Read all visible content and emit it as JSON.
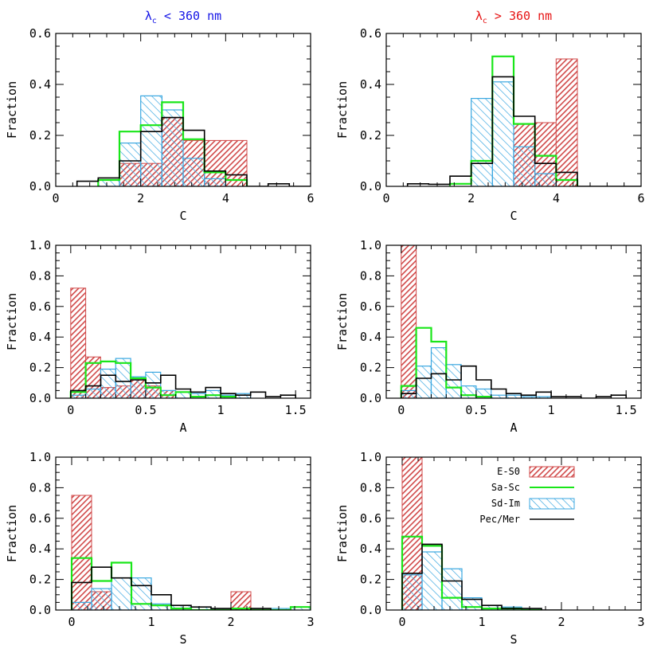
{
  "columns": [
    {
      "title_symbol": "λ",
      "title_subscript": "c",
      "title_text": " < 360 nm",
      "color": "#1414e6"
    },
    {
      "title_symbol": "λ",
      "title_subscript": "c",
      "title_text": " > 360 nm",
      "color": "#e61414"
    }
  ],
  "series": [
    {
      "key": "es0",
      "name": "E-S0",
      "style": "hatch-red",
      "fill": "#d04848",
      "stroke": "#d04848"
    },
    {
      "key": "sasc",
      "name": "Sa-Sc",
      "style": "line",
      "stroke": "#19e619"
    },
    {
      "key": "sdim",
      "name": "Sd-Im",
      "style": "hatch-blue",
      "fill": "#3aa7e0",
      "stroke": "#3aa7e0"
    },
    {
      "key": "pec",
      "name": "Pec/Mer",
      "style": "line",
      "stroke": "#000000"
    }
  ],
  "chart_data": [
    {
      "type": "histogram",
      "row": 0,
      "col": 0,
      "xlabel": "C",
      "ylabel": "Fraction",
      "xlim": [
        0,
        6
      ],
      "ylim": [
        0,
        0.6
      ],
      "xticks": [
        0,
        2,
        4,
        6
      ],
      "yticks": [
        0.0,
        0.2,
        0.4,
        0.6
      ],
      "xtick_labels": [
        "0",
        "2",
        "4",
        "6"
      ],
      "ytick_labels": [
        "0.0",
        "0.2",
        "0.4",
        "0.6"
      ],
      "series": {
        "es0": {
          "edges": [
            1.5,
            2.5,
            3.0,
            3.5,
            4.5
          ],
          "values": [
            0.09,
            0.27,
            0.18,
            0.18
          ]
        },
        "sdim": {
          "edges": [
            1.0,
            1.5,
            2.0,
            2.5,
            3.0,
            3.5,
            4.0
          ],
          "values": [
            0.025,
            0.17,
            0.355,
            0.3,
            0.11,
            0.03
          ]
        },
        "sasc": {
          "edges": [
            1.0,
            1.5,
            2.0,
            2.5,
            3.0,
            3.5,
            4.0,
            4.5
          ],
          "values": [
            0.025,
            0.215,
            0.24,
            0.33,
            0.185,
            0.055,
            0.025
          ]
        },
        "pec": {
          "edges": [
            0.5,
            1.0,
            1.5,
            2.0,
            2.5,
            3.0,
            3.5,
            4.0,
            4.5,
            5.0,
            5.5,
            6.0
          ],
          "values": [
            0.02,
            0.033,
            0.1,
            0.215,
            0.27,
            0.22,
            0.06,
            0.045,
            0.0,
            0.01,
            0.0
          ]
        }
      }
    },
    {
      "type": "histogram",
      "row": 0,
      "col": 1,
      "xlabel": "C",
      "ylabel": "Fraction",
      "xlim": [
        0,
        6
      ],
      "ylim": [
        0,
        0.6
      ],
      "xticks": [
        0,
        2,
        4,
        6
      ],
      "yticks": [
        0.0,
        0.2,
        0.4,
        0.6
      ],
      "xtick_labels": [
        "0",
        "2",
        "4",
        "6"
      ],
      "ytick_labels": [
        "0.0",
        "0.2",
        "0.4",
        "0.6"
      ],
      "series": {
        "es0": {
          "edges": [
            3.0,
            3.5,
            4.0,
            4.5
          ],
          "values": [
            0.245,
            0.25,
            0.5
          ]
        },
        "sdim": {
          "edges": [
            2.0,
            2.5,
            3.0,
            3.5,
            4.0
          ],
          "values": [
            0.345,
            0.41,
            0.155,
            0.05
          ]
        },
        "sasc": {
          "edges": [
            1.5,
            2.0,
            2.5,
            3.0,
            3.5,
            4.0,
            4.5
          ],
          "values": [
            0.01,
            0.1,
            0.51,
            0.245,
            0.12,
            0.025
          ]
        },
        "pec": {
          "edges": [
            0.5,
            1.0,
            1.5,
            2.0,
            2.5,
            3.0,
            3.5,
            4.0,
            4.5,
            5.0,
            6.0
          ],
          "values": [
            0.01,
            0.008,
            0.04,
            0.09,
            0.43,
            0.275,
            0.09,
            0.055,
            0.0,
            0.0
          ]
        }
      }
    },
    {
      "type": "histogram",
      "row": 1,
      "col": 0,
      "xlabel": "A",
      "ylabel": "Fraction",
      "xlim": [
        -0.1,
        1.6
      ],
      "ylim": [
        0,
        1.0
      ],
      "xticks": [
        0,
        0.5,
        1,
        1.5
      ],
      "yticks": [
        0.0,
        0.2,
        0.4,
        0.6,
        0.8,
        1.0
      ],
      "xtick_labels": [
        "0",
        "0.5",
        "1",
        "1.5"
      ],
      "ytick_labels": [
        "0.0",
        "0.2",
        "0.4",
        "0.6",
        "0.8",
        "1.0"
      ],
      "series": {
        "es0": {
          "edges": [
            0.0,
            0.1,
            0.2,
            0.3,
            0.4,
            0.5,
            0.6,
            0.7
          ],
          "values": [
            0.72,
            0.27,
            0.07,
            0.08,
            0.12,
            0.08,
            0.05
          ]
        },
        "sdim": {
          "edges": [
            0.0,
            0.1,
            0.2,
            0.3,
            0.4,
            0.5,
            0.6,
            0.7,
            0.8,
            0.9,
            1.0,
            1.1,
            1.2
          ],
          "values": [
            0.02,
            0.06,
            0.19,
            0.26,
            0.14,
            0.17,
            0.05,
            0.04,
            0.03,
            0.05,
            0.02,
            0.03
          ]
        },
        "sasc": {
          "edges": [
            0.0,
            0.1,
            0.2,
            0.3,
            0.4,
            0.5,
            0.6,
            0.7,
            0.8,
            0.9,
            1.0,
            1.1
          ],
          "values": [
            0.04,
            0.23,
            0.24,
            0.23,
            0.13,
            0.07,
            0.02,
            0.04,
            0.01,
            0.02,
            0.01
          ]
        },
        "pec": {
          "edges": [
            0.0,
            0.1,
            0.2,
            0.3,
            0.4,
            0.5,
            0.6,
            0.7,
            0.8,
            0.9,
            1.0,
            1.1,
            1.2,
            1.3,
            1.4,
            1.5
          ],
          "values": [
            0.05,
            0.08,
            0.15,
            0.11,
            0.12,
            0.1,
            0.15,
            0.06,
            0.04,
            0.07,
            0.03,
            0.02,
            0.04,
            0.01,
            0.02
          ]
        }
      }
    },
    {
      "type": "histogram",
      "row": 1,
      "col": 1,
      "xlabel": "A",
      "ylabel": "Fraction",
      "xlim": [
        -0.1,
        1.6
      ],
      "ylim": [
        0,
        1.0
      ],
      "xticks": [
        0,
        0.5,
        1,
        1.5
      ],
      "yticks": [
        0.0,
        0.2,
        0.4,
        0.6,
        0.8,
        1.0
      ],
      "xtick_labels": [
        "0",
        "0.5",
        "1",
        "1.5"
      ],
      "ytick_labels": [
        "0.0",
        "0.2",
        "0.4",
        "0.6",
        "0.8",
        "1.0"
      ],
      "series": {
        "es0": {
          "edges": [
            0.0,
            0.1
          ],
          "values": [
            1.0
          ]
        },
        "sdim": {
          "edges": [
            0.0,
            0.1,
            0.2,
            0.3,
            0.4,
            0.5,
            0.6,
            0.7,
            0.8,
            0.9,
            1.0
          ],
          "values": [
            0.05,
            0.21,
            0.33,
            0.22,
            0.08,
            0.06,
            0.02,
            0.02,
            0.01,
            0.01
          ]
        },
        "sasc": {
          "edges": [
            0.0,
            0.1,
            0.2,
            0.3,
            0.4,
            0.5,
            0.6
          ],
          "values": [
            0.08,
            0.46,
            0.37,
            0.07,
            0.02,
            0.01
          ]
        },
        "pec": {
          "edges": [
            0.0,
            0.1,
            0.2,
            0.3,
            0.4,
            0.5,
            0.6,
            0.7,
            0.8,
            0.9,
            1.0,
            1.1,
            1.2,
            1.3,
            1.4,
            1.5
          ],
          "values": [
            0.03,
            0.13,
            0.16,
            0.12,
            0.21,
            0.12,
            0.06,
            0.03,
            0.02,
            0.04,
            0.01,
            0.01,
            0.0,
            0.01,
            0.02
          ]
        }
      }
    },
    {
      "type": "histogram",
      "row": 2,
      "col": 0,
      "xlabel": "S",
      "ylabel": "Fraction",
      "xlim": [
        -0.2,
        3
      ],
      "ylim": [
        0,
        1.0
      ],
      "xticks": [
        0,
        1,
        2,
        3
      ],
      "yticks": [
        0.0,
        0.2,
        0.4,
        0.6,
        0.8,
        1.0
      ],
      "xtick_labels": [
        "0",
        "1",
        "2",
        "3"
      ],
      "ytick_labels": [
        "0.0",
        "0.2",
        "0.4",
        "0.6",
        "0.8",
        "1.0"
      ],
      "series": {
        "es0": {
          "edges": [
            0.0,
            0.25,
            0.5,
            2.0,
            2.25
          ],
          "values": [
            0.75,
            0.12,
            0.0,
            0.12
          ]
        },
        "sdim": {
          "edges": [
            0.0,
            0.25,
            0.5,
            0.75,
            1.0,
            1.25,
            1.5,
            1.75,
            2.0,
            2.25,
            2.5,
            2.75,
            3.0
          ],
          "values": [
            0.05,
            0.14,
            0.21,
            0.21,
            0.04,
            0.03,
            0.02,
            0.01,
            0.0,
            0.01,
            0.01,
            0.02
          ]
        },
        "sasc": {
          "edges": [
            0.0,
            0.25,
            0.5,
            0.75,
            1.0,
            1.25,
            1.5,
            1.75,
            2.0,
            2.25,
            2.5,
            2.75,
            3.0
          ],
          "values": [
            0.34,
            0.19,
            0.31,
            0.04,
            0.03,
            0.01,
            0.0,
            0.0,
            0.01,
            0.0,
            0.0,
            0.02
          ]
        },
        "pec": {
          "edges": [
            0.0,
            0.25,
            0.5,
            0.75,
            1.0,
            1.25,
            1.5,
            1.75,
            2.0,
            2.25,
            2.5
          ],
          "values": [
            0.18,
            0.28,
            0.21,
            0.16,
            0.1,
            0.03,
            0.02,
            0.01,
            0.0,
            0.01
          ]
        }
      }
    },
    {
      "type": "histogram",
      "row": 2,
      "col": 1,
      "xlabel": "S",
      "ylabel": "Fraction",
      "xlim": [
        -0.2,
        3
      ],
      "ylim": [
        0,
        1.0
      ],
      "xticks": [
        0,
        1,
        2,
        3
      ],
      "yticks": [
        0.0,
        0.2,
        0.4,
        0.6,
        0.8,
        1.0
      ],
      "xtick_labels": [
        "0",
        "1",
        "2",
        "3"
      ],
      "ytick_labels": [
        "0.0",
        "0.2",
        "0.4",
        "0.6",
        "0.8",
        "1.0"
      ],
      "legend_position": "top-right",
      "series": {
        "es0": {
          "edges": [
            0.0,
            0.25
          ],
          "values": [
            1.0
          ]
        },
        "sdim": {
          "edges": [
            0.0,
            0.25,
            0.5,
            0.75,
            1.0,
            1.25,
            1.5,
            1.75
          ],
          "values": [
            0.23,
            0.38,
            0.27,
            0.08,
            0.03,
            0.02,
            0.01
          ]
        },
        "sasc": {
          "edges": [
            0.0,
            0.25,
            0.5,
            0.75,
            1.0,
            1.25,
            1.5,
            1.75
          ],
          "values": [
            0.48,
            0.42,
            0.08,
            0.02,
            0.01,
            0.01,
            0.0
          ]
        },
        "pec": {
          "edges": [
            0.0,
            0.25,
            0.5,
            0.75,
            1.0,
            1.25,
            1.5,
            1.75,
            2.0
          ],
          "values": [
            0.24,
            0.43,
            0.19,
            0.07,
            0.03,
            0.01,
            0.01,
            0.0
          ]
        }
      }
    }
  ]
}
